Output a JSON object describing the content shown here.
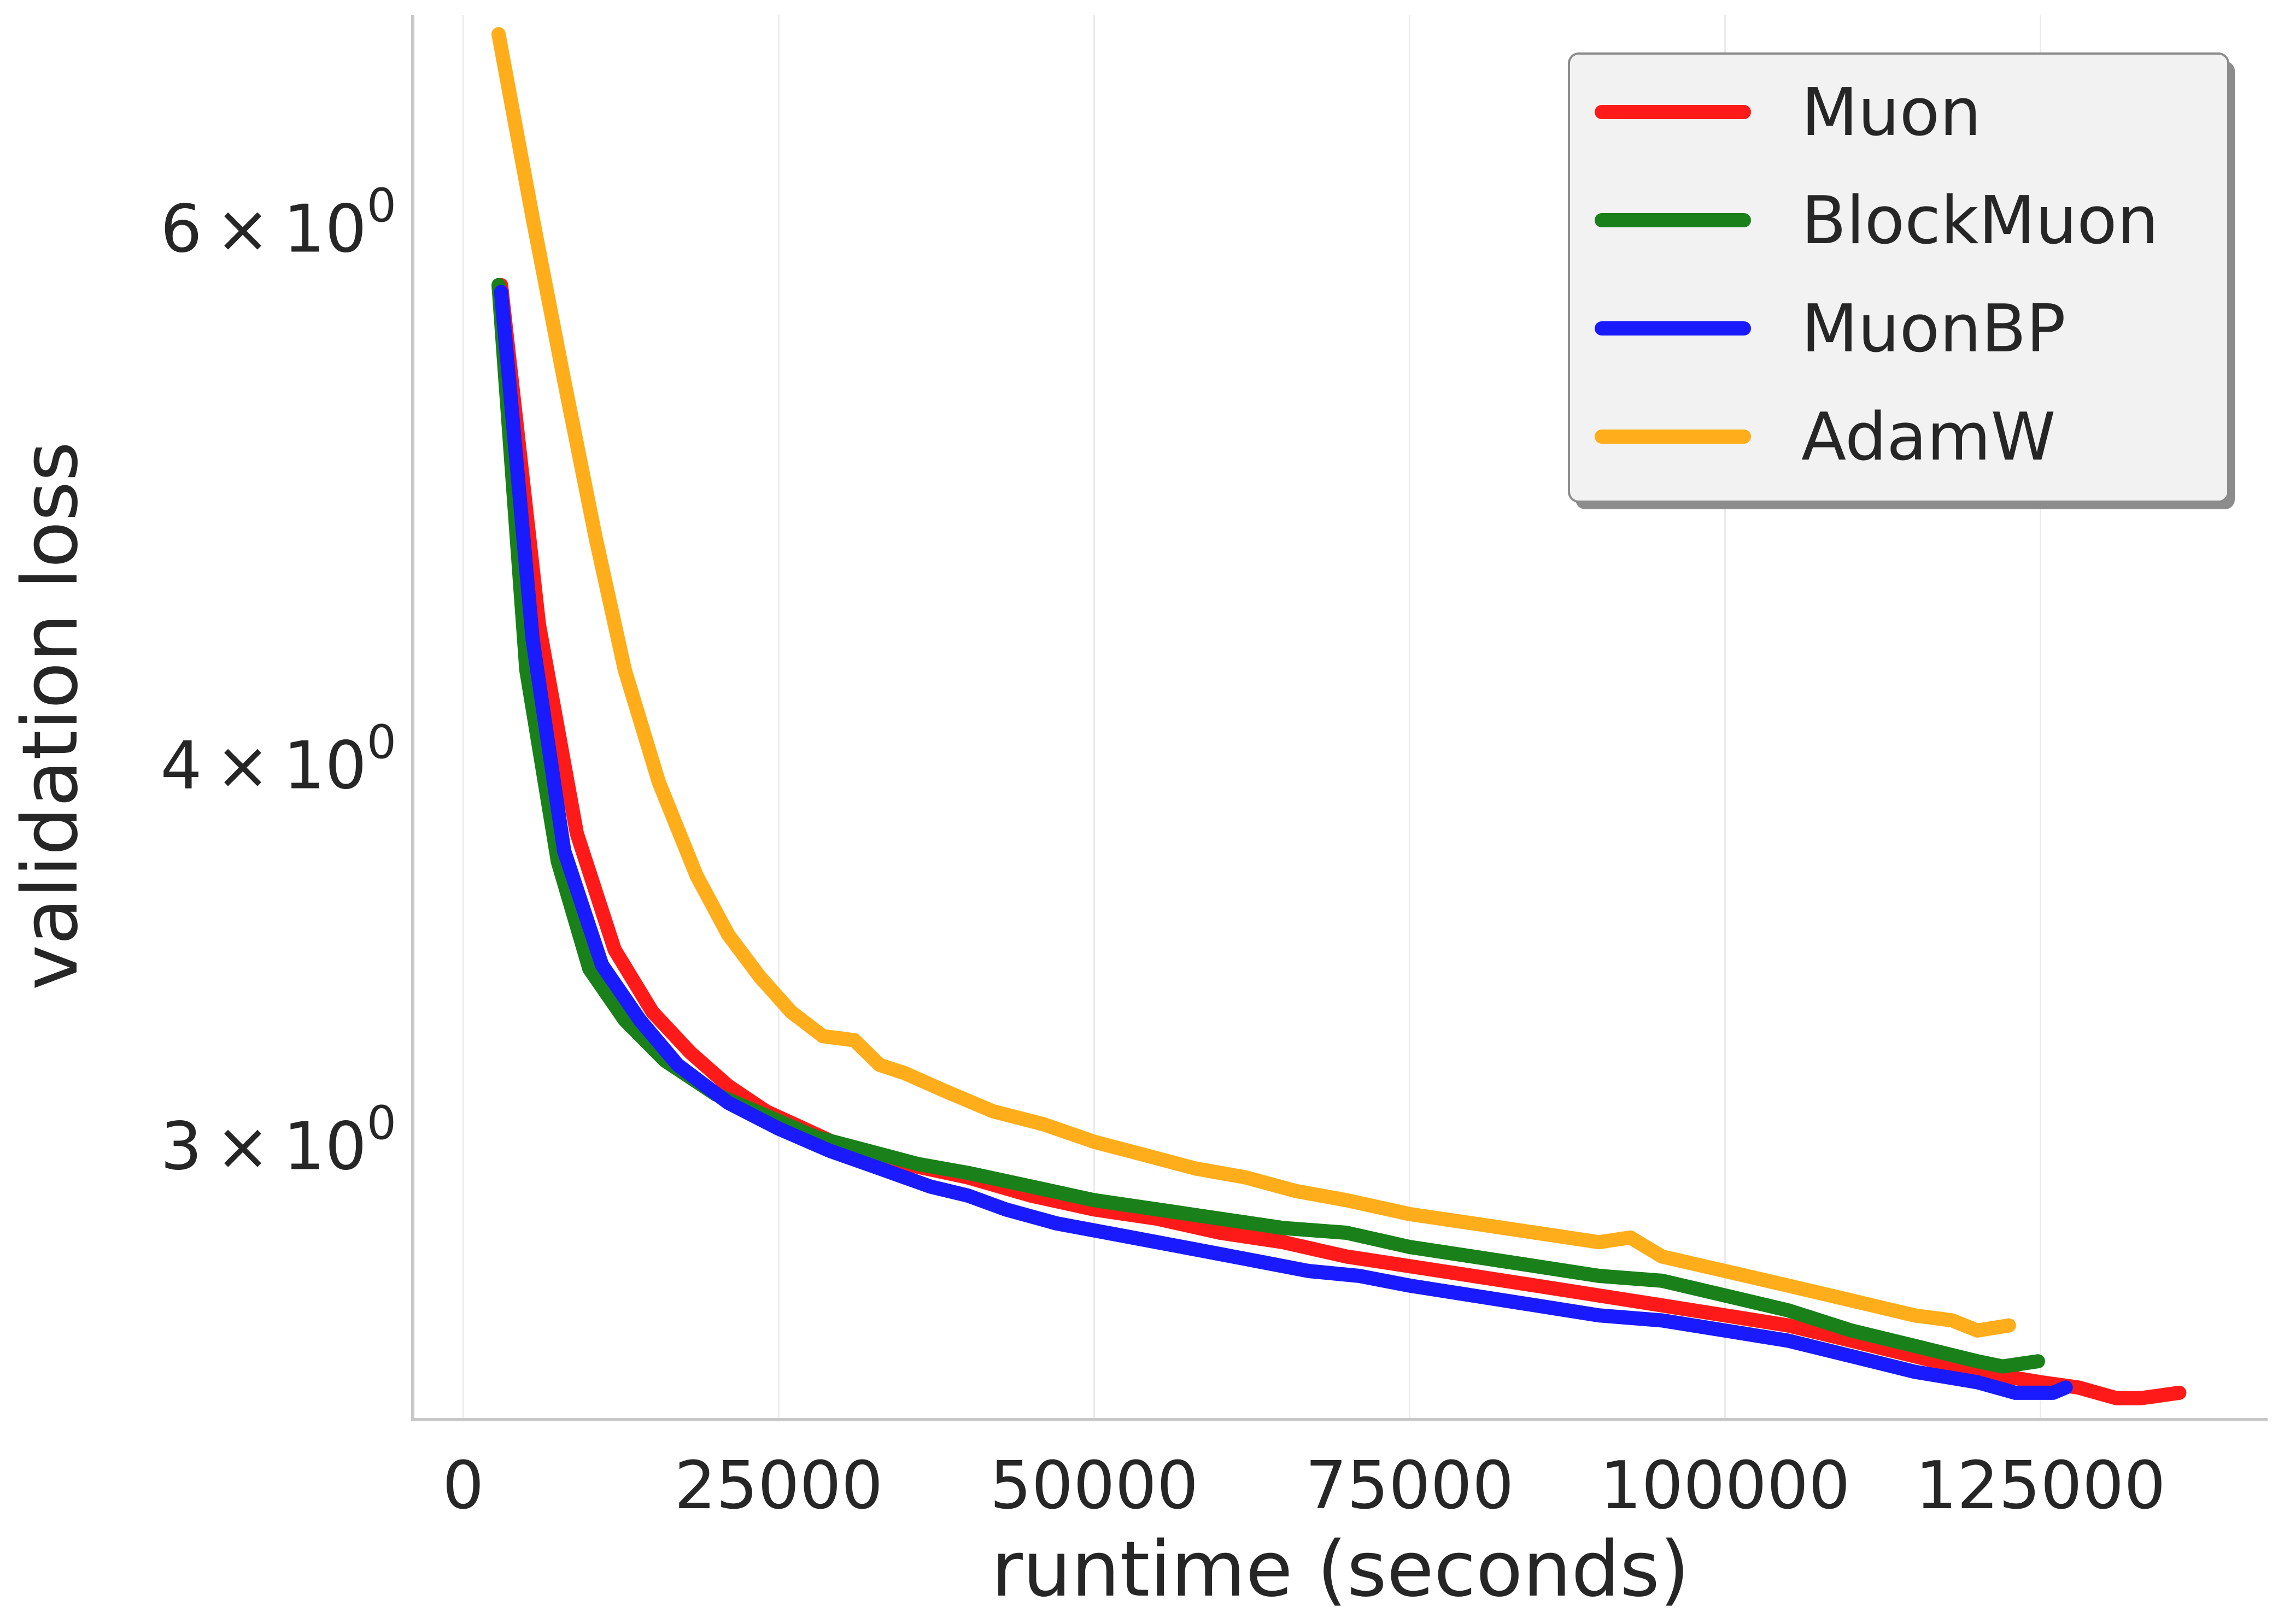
{
  "chart_data": {
    "type": "line",
    "xlabel": "runtime (seconds)",
    "ylabel": "validation loss",
    "yscale": "log",
    "xlim": [
      -4000,
      143000
    ],
    "ylim": [
      2.44,
      7.05
    ],
    "xticks": [
      0,
      25000,
      50000,
      75000,
      100000,
      125000
    ],
    "xtick_labels": [
      "0",
      "25000",
      "50000",
      "75000",
      "100000",
      "125000"
    ],
    "yticks": [
      {
        "value": 6,
        "mantissa": "6",
        "base": "10",
        "exponent": "0"
      },
      {
        "value": 4,
        "mantissa": "4",
        "base": "10",
        "exponent": "0"
      },
      {
        "value": 3,
        "mantissa": "3",
        "base": "10",
        "exponent": "0"
      }
    ],
    "grid": "x-only",
    "legend_position": "top-right",
    "series": [
      {
        "name": "Muon",
        "color": "#ff1a1a",
        "x": [
          3000,
          6000,
          9000,
          12000,
          15000,
          18000,
          21000,
          24000,
          27000,
          30000,
          35000,
          40000,
          45000,
          50000,
          55000,
          60000,
          65000,
          70000,
          75000,
          80000,
          85000,
          90000,
          95000,
          100000,
          105000,
          110000,
          115000,
          120000,
          125000,
          128000,
          131000,
          133000,
          136000
        ],
        "y": [
          5.75,
          4.45,
          3.8,
          3.48,
          3.32,
          3.22,
          3.14,
          3.08,
          3.04,
          3.0,
          2.96,
          2.93,
          2.89,
          2.86,
          2.84,
          2.81,
          2.79,
          2.76,
          2.74,
          2.72,
          2.7,
          2.68,
          2.66,
          2.64,
          2.62,
          2.59,
          2.56,
          2.53,
          2.51,
          2.5,
          2.48,
          2.48,
          2.49
        ]
      },
      {
        "name": "BlockMuon",
        "color": "#1a801a",
        "x": [
          2800,
          5000,
          7500,
          10000,
          12800,
          16000,
          20000,
          24000,
          28000,
          32000,
          36000,
          40000,
          45000,
          50000,
          55000,
          60000,
          65000,
          70000,
          75000,
          80000,
          85000,
          90000,
          95000,
          100000,
          105000,
          110000,
          115000,
          120000,
          122000,
          124800
        ],
        "y": [
          5.75,
          4.3,
          3.72,
          3.43,
          3.3,
          3.2,
          3.12,
          3.07,
          3.02,
          2.99,
          2.96,
          2.94,
          2.91,
          2.88,
          2.86,
          2.84,
          2.82,
          2.81,
          2.78,
          2.76,
          2.74,
          2.72,
          2.71,
          2.68,
          2.65,
          2.61,
          2.58,
          2.55,
          2.54,
          2.55
        ]
      },
      {
        "name": "MuonBP",
        "color": "#1a1aff",
        "x": [
          3000,
          5500,
          8000,
          11000,
          14000,
          17000,
          21000,
          25000,
          29000,
          33000,
          37000,
          40000,
          43000,
          47000,
          51000,
          55000,
          59000,
          63000,
          67000,
          71000,
          75000,
          80000,
          85000,
          90000,
          95000,
          100000,
          105000,
          110000,
          115000,
          120000,
          123000,
          126000,
          127000
        ],
        "y": [
          5.72,
          4.4,
          3.75,
          3.44,
          3.3,
          3.19,
          3.1,
          3.04,
          2.99,
          2.95,
          2.91,
          2.89,
          2.86,
          2.83,
          2.81,
          2.79,
          2.77,
          2.75,
          2.73,
          2.72,
          2.7,
          2.68,
          2.66,
          2.64,
          2.63,
          2.61,
          2.59,
          2.56,
          2.53,
          2.51,
          2.49,
          2.49,
          2.5
        ]
      },
      {
        "name": "AdamW",
        "color": "#ffad1a",
        "x": [
          2800,
          5500,
          8000,
          10500,
          12800,
          15500,
          18500,
          21000,
          23500,
          26000,
          28500,
          31000,
          33000,
          35000,
          38000,
          42000,
          46000,
          50000,
          54000,
          58000,
          62000,
          66000,
          70000,
          75000,
          80000,
          85000,
          90000,
          92500,
          95000,
          100000,
          105000,
          110000,
          115000,
          118000,
          120000,
          122500
        ],
        "y": [
          6.95,
          6.05,
          5.35,
          4.75,
          4.3,
          3.95,
          3.68,
          3.52,
          3.41,
          3.32,
          3.26,
          3.25,
          3.19,
          3.17,
          3.13,
          3.08,
          3.05,
          3.01,
          2.98,
          2.95,
          2.93,
          2.9,
          2.88,
          2.85,
          2.83,
          2.81,
          2.79,
          2.8,
          2.76,
          2.73,
          2.7,
          2.67,
          2.64,
          2.63,
          2.61,
          2.62
        ]
      }
    ]
  }
}
